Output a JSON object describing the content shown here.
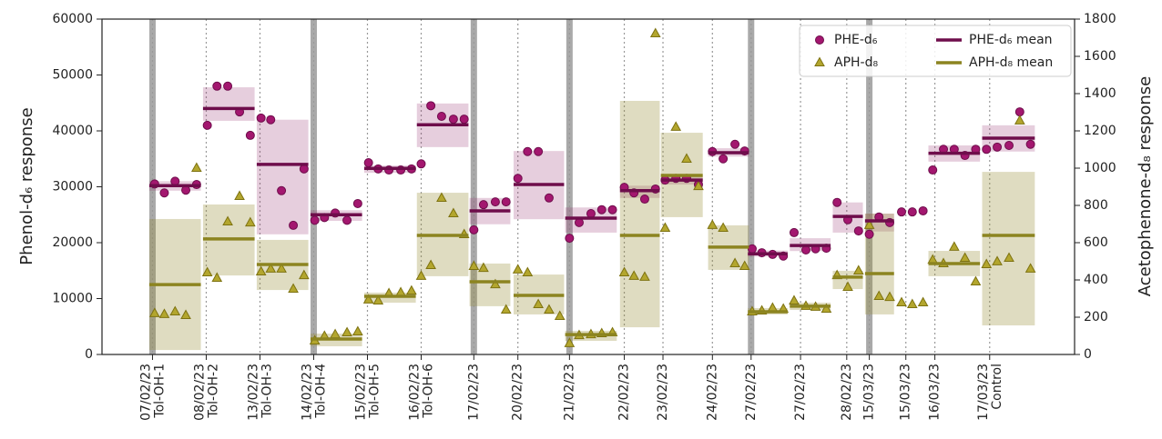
{
  "chart_data": {
    "type": "scatter",
    "ylabel": "Phenol-d₆ response",
    "y2label": "Acetophenone-d₈ response",
    "xlim": [
      -4.7,
      85.8
    ],
    "ylim": [
      0,
      60000
    ],
    "yticks": [
      0,
      10000,
      20000,
      30000,
      40000,
      50000,
      60000
    ],
    "y2lim": [
      0,
      1800
    ],
    "y2ticks": [
      0,
      200,
      400,
      600,
      800,
      1000,
      1200,
      1400,
      1600,
      1800
    ],
    "xticks": [
      {
        "value": 0,
        "label": "07/02/23",
        "label2": "Tol-OH-1"
      },
      {
        "value": 5,
        "label": "08/02/23",
        "label2": "Tol-OH-2"
      },
      {
        "value": 10,
        "label": "13/02/23",
        "label2": "Tol-OH-3"
      },
      {
        "value": 15,
        "label": "14/02/23",
        "label2": "Tol-OH-4"
      },
      {
        "value": 20,
        "label": "15/02/23",
        "label2": "Tol-OH-5"
      },
      {
        "value": 25,
        "label": "16/02/23",
        "label2": "Tol-OH-6"
      },
      {
        "value": 29.9,
        "label": "17/02/23"
      },
      {
        "value": 34,
        "label": "20/02/23"
      },
      {
        "value": 38.8,
        "label": "21/02/23"
      },
      {
        "value": 43.9,
        "label": "22/02/23"
      },
      {
        "value": 47.5,
        "label": "23/02/23"
      },
      {
        "value": 52.1,
        "label": "24/02/23"
      },
      {
        "value": 55.7,
        "label": "27/02/23"
      },
      {
        "value": 60.3,
        "label": "27/02/23"
      },
      {
        "value": 64.6,
        "label": "28/02/23"
      },
      {
        "value": 66.7,
        "label": "15/03/23"
      },
      {
        "value": 70.1,
        "label": "15/03/23"
      },
      {
        "value": 72.8,
        "label": "16/03/23"
      },
      {
        "value": 77.9,
        "label": "17/03/23",
        "label2": "Control"
      }
    ],
    "breaks": [
      0,
      15,
      29.9,
      38.8,
      55.7,
      66.7
    ],
    "legend": "upper right",
    "series": [
      {
        "name": "PHE-d₆",
        "color": "#a3176f",
        "edge": "#6e0d4b",
        "marker": "circle",
        "x": [
          0.2,
          1.1,
          2.1,
          3.1,
          4.1,
          5.1,
          6.0,
          7.0,
          8.1,
          9.1,
          10.1,
          11.0,
          12.0,
          13.1,
          14.1,
          15.1,
          16.0,
          17.0,
          18.1,
          19.1,
          20.1,
          21.0,
          22.0,
          23.1,
          24.1,
          25.0,
          25.9,
          26.9,
          28.0,
          29.0,
          29.9,
          30.8,
          31.9,
          32.9,
          34.0,
          34.9,
          35.9,
          36.9,
          38.8,
          39.7,
          40.8,
          41.8,
          42.8,
          43.9,
          44.8,
          45.8,
          46.8,
          47.7,
          48.7,
          49.7,
          50.8,
          52.1,
          53.1,
          54.2,
          55.1,
          55.8,
          56.7,
          57.7,
          58.7,
          59.7,
          60.8,
          61.7,
          62.7,
          63.7,
          64.7,
          65.7,
          66.7,
          67.6,
          68.6,
          69.7,
          70.7,
          71.7,
          72.6,
          73.6,
          74.6,
          75.6,
          76.6,
          77.6,
          78.6,
          79.7,
          80.7,
          81.7
        ],
        "values": [
          30500,
          28900,
          31000,
          29400,
          30400,
          41000,
          48000,
          48000,
          43400,
          39200,
          42300,
          42000,
          29300,
          23100,
          33200,
          24000,
          24500,
          25300,
          24000,
          27000,
          34300,
          33200,
          33000,
          33000,
          33200,
          34100,
          44500,
          42600,
          42100,
          42100,
          22300,
          26800,
          27300,
          27300,
          31500,
          36300,
          36300,
          28000,
          20800,
          23600,
          25200,
          25900,
          25900,
          29900,
          28900,
          27800,
          29600,
          31200,
          31500,
          31500,
          30400,
          36300,
          35000,
          37600,
          36400,
          18900,
          18200,
          17900,
          17600,
          21800,
          18700,
          18900,
          19000,
          27200,
          24100,
          22100,
          21500,
          24600,
          23600,
          25500,
          25500,
          25700,
          33000,
          36700,
          36700,
          35600,
          36700,
          36700,
          37100,
          37400,
          43400,
          37600
        ]
      },
      {
        "name": "APH-d₈",
        "color": "#b3a62e",
        "edge": "#7d7210",
        "marker": "triangle",
        "axis": "y2",
        "x": [
          0.2,
          1.1,
          2.1,
          3.1,
          4.1,
          5.1,
          6.0,
          7.0,
          8.1,
          9.1,
          10.1,
          11.0,
          12.0,
          13.1,
          14.1,
          15.1,
          16.0,
          17.0,
          18.1,
          19.1,
          20.1,
          21.0,
          22.0,
          23.1,
          24.1,
          25.0,
          25.9,
          26.9,
          28.0,
          29.0,
          29.9,
          30.8,
          31.9,
          32.9,
          34.0,
          34.9,
          35.9,
          36.9,
          37.9,
          38.8,
          39.7,
          40.8,
          41.8,
          42.8,
          43.9,
          44.8,
          45.8,
          46.8,
          47.7,
          48.7,
          49.7,
          50.8,
          52.1,
          53.1,
          54.2,
          55.1,
          55.8,
          56.7,
          57.7,
          58.7,
          59.7,
          60.8,
          61.7,
          62.7,
          63.7,
          64.7,
          65.7,
          66.7,
          67.6,
          68.6,
          69.7,
          70.7,
          71.7,
          72.6,
          73.6,
          74.6,
          75.6,
          76.6,
          77.6,
          78.6,
          79.7,
          80.7,
          81.7
        ],
        "values": [
          220,
          215,
          229,
          210,
          1000,
          439,
          410,
          712,
          849,
          707,
          444,
          459,
          459,
          351,
          424,
          73,
          98,
          107,
          117,
          122,
          293,
          288,
          327,
          332,
          341,
          420,
          478,
          839,
          756,
          644,
          473,
          463,
          375,
          239,
          454,
          439,
          268,
          239,
          205,
          59,
          102,
          107,
          112,
          117,
          439,
          420,
          415,
          1722,
          678,
          1220,
          1049,
          902,
          693,
          678,
          488,
          473,
          229,
          234,
          249,
          244,
          288,
          259,
          254,
          244,
          424,
          361,
          449,
          693,
          312,
          307,
          278,
          268,
          278,
          507,
          488,
          576,
          517,
          390,
          483,
          498,
          517,
          1254,
          459
        ]
      },
      {
        "name": "PHE-d₆ mean",
        "color": "#6e0d4b",
        "band": "rgba(140,30,100,0.22)",
        "marker": "mean",
        "segments": [
          {
            "x": [
              -0.3,
              4.5
            ],
            "value": 30200,
            "low": 29300,
            "high": 31000
          },
          {
            "x": [
              4.7,
              9.5
            ],
            "value": 44000,
            "low": 41800,
            "high": 47800
          },
          {
            "x": [
              9.7,
              14.5
            ],
            "value": 34000,
            "low": 21500,
            "high": 42000
          },
          {
            "x": [
              14.7,
              19.5
            ],
            "value": 25000,
            "low": 23900,
            "high": 25800
          },
          {
            "x": [
              19.7,
              24.5
            ],
            "value": 33300,
            "low": 32500,
            "high": 33800
          },
          {
            "x": [
              24.6,
              29.4
            ],
            "value": 41100,
            "low": 37100,
            "high": 44900
          },
          {
            "x": [
              29.5,
              33.3
            ],
            "value": 25700,
            "low": 23300,
            "high": 28000
          },
          {
            "x": [
              33.6,
              38.3
            ],
            "value": 30400,
            "low": 24200,
            "high": 36400
          },
          {
            "x": [
              38.4,
              43.2
            ],
            "value": 24400,
            "low": 21800,
            "high": 26300
          },
          {
            "x": [
              43.5,
              47.2
            ],
            "value": 29300,
            "low": 28000,
            "high": 30200
          },
          {
            "x": [
              47.3,
              51.2
            ],
            "value": 31200,
            "low": 30400,
            "high": 31900
          },
          {
            "x": [
              51.7,
              55.5
            ],
            "value": 36100,
            "low": 35400,
            "high": 36900
          },
          {
            "x": [
              55.4,
              59.1
            ],
            "value": 18000,
            "low": 17500,
            "high": 18600
          },
          {
            "x": [
              59.3,
              63.1
            ],
            "value": 19500,
            "low": 18500,
            "high": 20800
          },
          {
            "x": [
              63.3,
              66.1
            ],
            "value": 24700,
            "low": 21800,
            "high": 27200
          },
          {
            "x": [
              66.3,
              69.0
            ],
            "value": 23900,
            "low": 22000,
            "high": 25200
          },
          {
            "x": [
              72.2,
              77.0
            ],
            "value": 36000,
            "low": 34500,
            "high": 37400
          },
          {
            "x": [
              77.2,
              82.1
            ],
            "value": 38700,
            "low": 36300,
            "high": 41000
          }
        ]
      },
      {
        "name": "APH-d₈ mean",
        "color": "#8c8420",
        "band": "rgba(150,140,50,0.3)",
        "marker": "mean",
        "axis": "y2",
        "segments": [
          {
            "x": [
              -0.3,
              4.5
            ],
            "value": 375,
            "low": 24,
            "high": 727
          },
          {
            "x": [
              4.7,
              9.5
            ],
            "value": 620,
            "low": 424,
            "high": 805
          },
          {
            "x": [
              9.7,
              14.5
            ],
            "value": 483,
            "low": 346,
            "high": 615
          },
          {
            "x": [
              14.7,
              19.5
            ],
            "value": 83,
            "low": 44,
            "high": 112
          },
          {
            "x": [
              19.7,
              24.5
            ],
            "value": 312,
            "low": 278,
            "high": 332
          },
          {
            "x": [
              24.6,
              29.4
            ],
            "value": 639,
            "low": 420,
            "high": 868
          },
          {
            "x": [
              29.5,
              33.3
            ],
            "value": 390,
            "low": 259,
            "high": 488
          },
          {
            "x": [
              33.6,
              38.3
            ],
            "value": 317,
            "low": 215,
            "high": 429
          },
          {
            "x": [
              38.4,
              43.2
            ],
            "value": 107,
            "low": 73,
            "high": 127
          },
          {
            "x": [
              43.5,
              47.2
            ],
            "value": 639,
            "low": 146,
            "high": 1361
          },
          {
            "x": [
              47.3,
              51.2
            ],
            "value": 961,
            "low": 737,
            "high": 1190
          },
          {
            "x": [
              51.7,
              55.5
            ],
            "value": 576,
            "low": 454,
            "high": 693
          },
          {
            "x": [
              55.4,
              59.1
            ],
            "value": 229,
            "low": 215,
            "high": 249
          },
          {
            "x": [
              59.3,
              63.1
            ],
            "value": 259,
            "low": 239,
            "high": 278
          },
          {
            "x": [
              63.3,
              66.1
            ],
            "value": 415,
            "low": 351,
            "high": 449
          },
          {
            "x": [
              66.3,
              69.0
            ],
            "value": 434,
            "low": 215,
            "high": 756
          },
          {
            "x": [
              72.2,
              77.0
            ],
            "value": 488,
            "low": 420,
            "high": 556
          },
          {
            "x": [
              77.2,
              82.1
            ],
            "value": 639,
            "low": 156,
            "high": 980
          }
        ]
      }
    ]
  }
}
